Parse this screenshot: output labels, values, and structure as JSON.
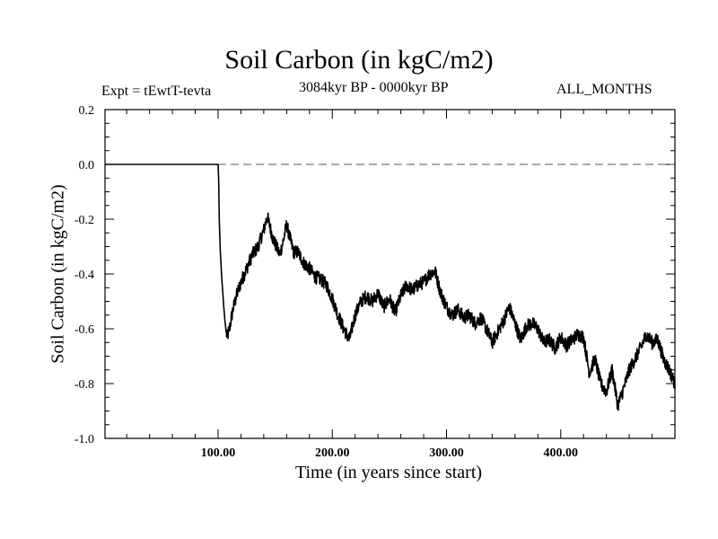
{
  "chart_data": {
    "type": "line",
    "title": "Soil Carbon (in kgC/m2)",
    "subtitle_left": "Expt = tEwtT-tevta",
    "subtitle_center": "3084kyr BP - 0000kyr BP",
    "subtitle_right": "ALL_MONTHS",
    "xlabel": "Time (in years since start)",
    "ylabel": "Soil Carbon (in kgC/m2)",
    "xlim": [
      1,
      500
    ],
    "ylim": [
      -1.0,
      0.2
    ],
    "x_ticks": [
      100,
      200,
      300,
      400
    ],
    "x_tick_labels": [
      "100.00",
      "200.00",
      "300.00",
      "400.00"
    ],
    "y_ticks": [
      0.2,
      0.0,
      -0.2,
      -0.4,
      -0.6,
      -0.8,
      -1.0
    ],
    "y_tick_labels": [
      "0.2",
      "0.0",
      "-0.2",
      "-0.4",
      "-0.6",
      "-0.8",
      "-1.0"
    ],
    "reference_line": {
      "y": 0.0,
      "style": "dashed"
    },
    "series": [
      {
        "name": "Soil Carbon",
        "x": [
          1,
          100,
          100.5,
          101,
          102,
          103,
          104,
          105,
          106,
          107,
          108,
          110,
          113,
          116,
          120,
          125,
          130,
          135,
          140,
          143,
          145,
          148,
          151,
          154,
          157,
          160,
          163,
          166,
          170,
          175,
          180,
          185,
          190,
          195,
          200,
          205,
          210,
          215,
          220,
          225,
          230,
          235,
          240,
          245,
          250,
          255,
          260,
          265,
          270,
          275,
          280,
          285,
          290,
          295,
          300,
          305,
          310,
          315,
          320,
          325,
          330,
          335,
          340,
          345,
          350,
          355,
          360,
          365,
          370,
          375,
          380,
          385,
          390,
          395,
          400,
          405,
          410,
          415,
          420,
          425,
          430,
          435,
          440,
          445,
          450,
          455,
          460,
          465,
          470,
          475,
          480,
          485,
          490,
          495,
          500
        ],
        "y": [
          0.0,
          0.0,
          -0.05,
          -0.2,
          -0.32,
          -0.4,
          -0.46,
          -0.52,
          -0.57,
          -0.61,
          -0.63,
          -0.6,
          -0.53,
          -0.48,
          -0.43,
          -0.38,
          -0.33,
          -0.3,
          -0.24,
          -0.19,
          -0.22,
          -0.27,
          -0.3,
          -0.33,
          -0.28,
          -0.22,
          -0.27,
          -0.32,
          -0.32,
          -0.36,
          -0.38,
          -0.41,
          -0.42,
          -0.44,
          -0.49,
          -0.55,
          -0.6,
          -0.64,
          -0.55,
          -0.5,
          -0.48,
          -0.5,
          -0.47,
          -0.52,
          -0.49,
          -0.54,
          -0.48,
          -0.44,
          -0.46,
          -0.44,
          -0.43,
          -0.4,
          -0.39,
          -0.47,
          -0.52,
          -0.55,
          -0.53,
          -0.56,
          -0.55,
          -0.58,
          -0.56,
          -0.6,
          -0.65,
          -0.61,
          -0.57,
          -0.52,
          -0.58,
          -0.64,
          -0.59,
          -0.58,
          -0.6,
          -0.65,
          -0.64,
          -0.67,
          -0.63,
          -0.66,
          -0.64,
          -0.62,
          -0.63,
          -0.76,
          -0.71,
          -0.8,
          -0.83,
          -0.75,
          -0.88,
          -0.82,
          -0.75,
          -0.71,
          -0.67,
          -0.62,
          -0.65,
          -0.64,
          -0.71,
          -0.75,
          -0.8
        ]
      }
    ]
  }
}
